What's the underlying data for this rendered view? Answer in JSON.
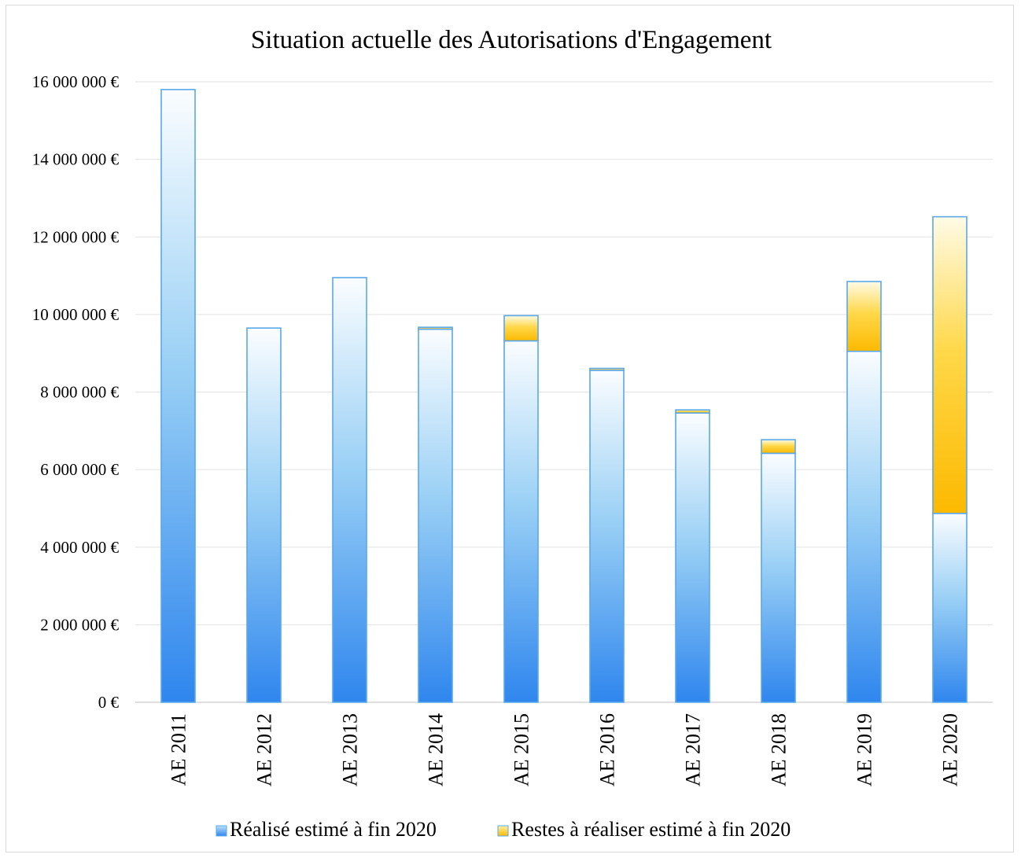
{
  "chart_data": {
    "type": "bar",
    "stacked": true,
    "title": "Situation actuelle des Autorisations d'Engagement",
    "xlabel": "",
    "ylabel": "",
    "ylim": [
      0,
      16000000
    ],
    "yticks": [
      0,
      2000000,
      4000000,
      6000000,
      8000000,
      10000000,
      12000000,
      14000000,
      16000000
    ],
    "ytick_labels": [
      "0 €",
      "2 000 000 €",
      "4 000 000 €",
      "6 000 000 €",
      "8 000 000 €",
      "10 000 000 €",
      "12 000 000 €",
      "14 000 000 €",
      "16 000 000 €"
    ],
    "grid": true,
    "legend_position": "bottom",
    "categories": [
      "AE 2011",
      "AE 2012",
      "AE 2013",
      "AE 2014",
      "AE 2015",
      "AE 2016",
      "AE 2017",
      "AE 2018",
      "AE 2019",
      "AE 2020"
    ],
    "series": [
      {
        "name": "Réalisé estimé à fin 2020",
        "color": "#4f9ff0",
        "values": [
          15800000,
          9650000,
          10950000,
          9620000,
          9320000,
          8560000,
          7460000,
          6420000,
          9050000,
          4870000
        ]
      },
      {
        "name": "Restes à réaliser estimé à fin 2020",
        "color": "#fcc000",
        "values": [
          0,
          0,
          0,
          50000,
          650000,
          50000,
          80000,
          350000,
          1800000,
          7650000
        ]
      }
    ]
  }
}
